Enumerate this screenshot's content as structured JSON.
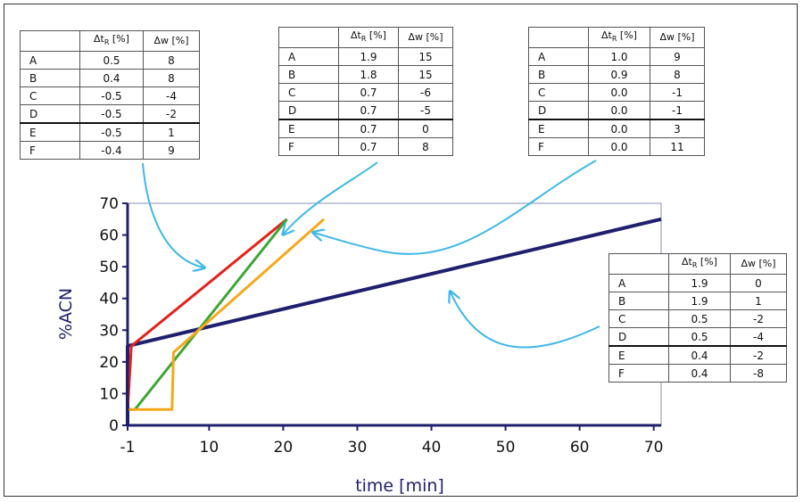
{
  "chart_data": {
    "type": "line",
    "xlabel": "time [min]",
    "ylabel": "%ACN",
    "xlim": [
      -1,
      71
    ],
    "ylim": [
      0,
      70
    ],
    "xticks": [
      "-1",
      "10",
      "20",
      "30",
      "40",
      "50",
      "60",
      "70"
    ],
    "yticks": [
      "0",
      "10",
      "20",
      "30",
      "40",
      "50",
      "60",
      "70"
    ],
    "grid": false,
    "series": [
      {
        "color": "#1f1f6e",
        "points": [
          [
            -1,
            0
          ],
          [
            -1,
            25
          ],
          [
            71,
            65
          ]
        ]
      },
      {
        "color": "#e32219",
        "points": [
          [
            -1,
            0
          ],
          [
            -1,
            5
          ],
          [
            -0.5,
            25
          ],
          [
            20.5,
            65
          ]
        ]
      },
      {
        "color": "#3fa535",
        "points": [
          [
            -1,
            0
          ],
          [
            -1,
            5
          ],
          [
            0,
            5
          ],
          [
            20.5,
            65
          ]
        ]
      },
      {
        "color": "#f5a81c",
        "points": [
          [
            -1,
            0
          ],
          [
            -1,
            5
          ],
          [
            5,
            5
          ],
          [
            5.2,
            23
          ],
          [
            25.5,
            65
          ]
        ]
      }
    ]
  },
  "tables": [
    {
      "header": [
        "Δt",
        "R",
        "[%]",
        "Δw [%]"
      ],
      "rows": [
        [
          "A",
          "0.5",
          "8"
        ],
        [
          "B",
          "0.4",
          "8"
        ],
        [
          "C",
          "-0.5",
          "-4"
        ],
        [
          "D",
          "-0.5",
          "-2"
        ],
        [
          "E",
          "-0.5",
          "1"
        ],
        [
          "F",
          "-0.4",
          "9"
        ]
      ]
    },
    {
      "header": [
        "Δt",
        "R",
        "[%]",
        "Δw [%]"
      ],
      "rows": [
        [
          "A",
          "1.9",
          "15"
        ],
        [
          "B",
          "1.8",
          "15"
        ],
        [
          "C",
          "0.7",
          "-6"
        ],
        [
          "D",
          "0.7",
          "-5"
        ],
        [
          "E",
          "0.7",
          "0"
        ],
        [
          "F",
          "0.7",
          "8"
        ]
      ]
    },
    {
      "header": [
        "Δt",
        "R",
        "[%]",
        "Δw [%]"
      ],
      "rows": [
        [
          "A",
          "1.0",
          "9"
        ],
        [
          "B",
          "0.9",
          "8"
        ],
        [
          "C",
          "0.0",
          "-1"
        ],
        [
          "D",
          "0.0",
          "-1"
        ],
        [
          "E",
          "0.0",
          "3"
        ],
        [
          "F",
          "0.0",
          "11"
        ]
      ]
    },
    {
      "header": [
        "Δt",
        "R",
        "[%]",
        "Δw [%]"
      ],
      "rows": [
        [
          "A",
          "1.9",
          "0"
        ],
        [
          "B",
          "1.9",
          "1"
        ],
        [
          "C",
          "0.5",
          "-2"
        ],
        [
          "D",
          "0.5",
          "-4"
        ],
        [
          "E",
          "0.4",
          "-2"
        ],
        [
          "F",
          "0.4",
          "-8"
        ]
      ]
    }
  ],
  "colors": {
    "axis": "#1f1f6e",
    "arrow": "#3fb8e8",
    "plot_border": "#8a8fb5"
  }
}
